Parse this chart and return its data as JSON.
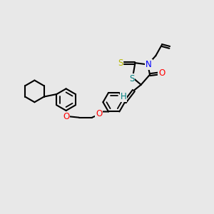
{
  "background_color": "#e8e8e8",
  "bond_color": "#000000",
  "atom_colors": {
    "O": "#ff0000",
    "N": "#0000ff",
    "S_yellow": "#b8b800",
    "S_teal": "#008080",
    "H": "#008080",
    "C": "#000000"
  },
  "bond_width": 1.5,
  "font_size_atoms": 8.5,
  "fig_size": [
    3.0,
    3.0
  ],
  "dpi": 100,
  "xlim": [
    0,
    10
  ],
  "ylim": [
    0,
    10
  ]
}
